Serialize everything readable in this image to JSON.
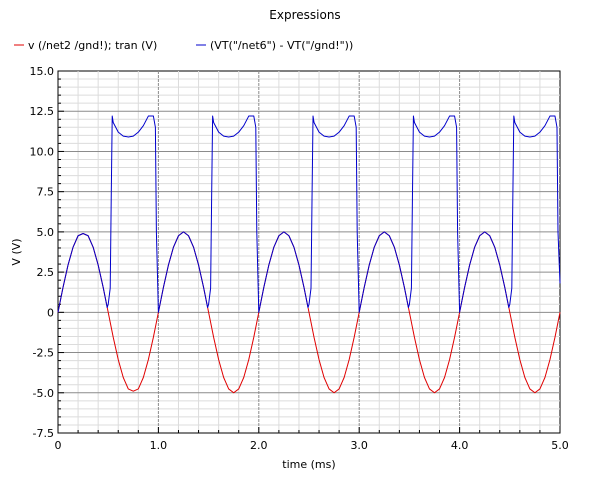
{
  "chart_data": {
    "type": "line",
    "title": "Expressions",
    "xlabel": "time (ms)",
    "ylabel": "V (V)",
    "xlim": [
      0,
      5.0
    ],
    "ylim": [
      -7.5,
      15.0
    ],
    "xticks": [
      0,
      1.0,
      2.0,
      3.0,
      4.0,
      5.0
    ],
    "xtick_labels": [
      "0",
      "1.0",
      "2.0",
      "3.0",
      "4.0",
      "5.0"
    ],
    "yticks": [
      -7.5,
      -5.0,
      -2.5,
      0,
      2.5,
      5.0,
      7.5,
      10.0,
      12.5,
      15.0
    ],
    "ytick_labels": [
      "-7.5",
      "-5.0",
      "-2.5",
      "0",
      "2.5",
      "5.0",
      "7.5",
      "10.0",
      "12.5",
      "15.0"
    ],
    "grid": true,
    "legend_position": "top-left",
    "series": [
      {
        "name": "v (/net2 /gnd!); tran (V)",
        "color": "#e00000",
        "x": [
          0,
          0.05,
          0.1,
          0.15,
          0.2,
          0.25,
          0.3,
          0.35,
          0.4,
          0.45,
          0.5,
          0.55,
          0.6,
          0.65,
          0.7,
          0.75,
          0.8,
          0.85,
          0.9,
          0.95,
          1.0,
          1.05,
          1.1,
          1.15,
          1.2,
          1.25,
          1.3,
          1.35,
          1.4,
          1.45,
          1.5,
          1.55,
          1.6,
          1.65,
          1.7,
          1.75,
          1.8,
          1.85,
          1.9,
          1.95,
          2.0,
          2.05,
          2.1,
          2.15,
          2.2,
          2.25,
          2.3,
          2.35,
          2.4,
          2.45,
          2.5,
          2.55,
          2.6,
          2.65,
          2.7,
          2.75,
          2.8,
          2.85,
          2.9,
          2.95,
          3.0,
          3.05,
          3.1,
          3.15,
          3.2,
          3.25,
          3.3,
          3.35,
          3.4,
          3.45,
          3.5,
          3.55,
          3.6,
          3.65,
          3.7,
          3.75,
          3.8,
          3.85,
          3.9,
          3.95,
          4.0,
          4.05,
          4.1,
          4.15,
          4.2,
          4.25,
          4.3,
          4.35,
          4.4,
          4.45,
          4.5,
          4.55,
          4.6,
          4.65,
          4.7,
          4.75,
          4.8,
          4.85,
          4.9,
          4.95,
          5.0
        ],
        "y": [
          0,
          1.55,
          2.94,
          4.05,
          4.76,
          4.9,
          4.76,
          4.05,
          2.94,
          1.55,
          0,
          -1.55,
          -2.94,
          -4.05,
          -4.76,
          -4.9,
          -4.76,
          -4.05,
          -2.94,
          -1.55,
          0,
          1.55,
          2.94,
          4.05,
          4.76,
          5.0,
          4.76,
          4.05,
          2.94,
          1.55,
          0,
          -1.55,
          -2.94,
          -4.05,
          -4.76,
          -5.0,
          -4.76,
          -4.05,
          -2.94,
          -1.55,
          0,
          1.55,
          2.94,
          4.05,
          4.76,
          5.0,
          4.76,
          4.05,
          2.94,
          1.55,
          0,
          -1.55,
          -2.94,
          -4.05,
          -4.76,
          -5.0,
          -4.76,
          -4.05,
          -2.94,
          -1.55,
          0,
          1.55,
          2.94,
          4.05,
          4.76,
          5.0,
          4.76,
          4.05,
          2.94,
          1.55,
          0,
          -1.55,
          -2.94,
          -4.05,
          -4.76,
          -5.0,
          -4.76,
          -4.05,
          -2.94,
          -1.55,
          0,
          1.55,
          2.94,
          4.05,
          4.76,
          5.0,
          4.76,
          4.05,
          2.94,
          1.55,
          0,
          -1.55,
          -2.94,
          -4.05,
          -4.76,
          -5.0,
          -4.76,
          -4.05,
          -2.94,
          -1.55,
          0
        ]
      },
      {
        "name": "(VT(\"/net6\") - VT(\"/gnd!\"))",
        "color": "#0000cc",
        "x": [
          0,
          0.05,
          0.1,
          0.15,
          0.2,
          0.25,
          0.3,
          0.35,
          0.4,
          0.45,
          0.49,
          0.5,
          0.52,
          0.53,
          0.54,
          0.55,
          0.6,
          0.65,
          0.7,
          0.75,
          0.8,
          0.85,
          0.9,
          0.95,
          0.97,
          0.98,
          1.0,
          1.05,
          1.1,
          1.15,
          1.2,
          1.25,
          1.3,
          1.35,
          1.4,
          1.45,
          1.49,
          1.5,
          1.52,
          1.53,
          1.54,
          1.55,
          1.6,
          1.65,
          1.7,
          1.75,
          1.8,
          1.85,
          1.9,
          1.95,
          1.97,
          1.98,
          2.0,
          2.05,
          2.1,
          2.15,
          2.2,
          2.25,
          2.3,
          2.35,
          2.4,
          2.45,
          2.49,
          2.5,
          2.52,
          2.53,
          2.54,
          2.55,
          2.6,
          2.65,
          2.7,
          2.75,
          2.8,
          2.85,
          2.9,
          2.95,
          2.97,
          2.98,
          3.0,
          3.05,
          3.1,
          3.15,
          3.2,
          3.25,
          3.3,
          3.35,
          3.4,
          3.45,
          3.49,
          3.5,
          3.52,
          3.53,
          3.54,
          3.55,
          3.6,
          3.65,
          3.7,
          3.75,
          3.8,
          3.85,
          3.9,
          3.95,
          3.97,
          3.98,
          4.0,
          4.05,
          4.1,
          4.15,
          4.2,
          4.25,
          4.3,
          4.35,
          4.4,
          4.45,
          4.49,
          4.5,
          4.52,
          4.53,
          4.54,
          4.55,
          4.6,
          4.65,
          4.7,
          4.75,
          4.8,
          4.85,
          4.9,
          4.95,
          4.97,
          4.98,
          5.0
        ],
        "y": [
          0,
          1.55,
          2.94,
          4.05,
          4.76,
          4.9,
          4.76,
          4.05,
          2.94,
          1.55,
          0.3,
          0.5,
          1.5,
          7.0,
          12.2,
          11.8,
          11.2,
          10.95,
          10.9,
          10.95,
          11.2,
          11.6,
          12.2,
          12.2,
          11.5,
          5.0,
          0,
          1.55,
          2.94,
          4.05,
          4.76,
          5.0,
          4.76,
          4.05,
          2.94,
          1.55,
          0.3,
          0.5,
          1.5,
          7.0,
          12.2,
          11.8,
          11.2,
          10.95,
          10.9,
          10.95,
          11.2,
          11.6,
          12.2,
          12.2,
          11.5,
          5.0,
          0,
          1.55,
          2.94,
          4.05,
          4.76,
          5.0,
          4.76,
          4.05,
          2.94,
          1.55,
          0.3,
          0.5,
          1.5,
          7.0,
          12.2,
          11.8,
          11.2,
          10.95,
          10.9,
          10.95,
          11.2,
          11.6,
          12.2,
          12.2,
          11.5,
          5.0,
          0,
          1.55,
          2.94,
          4.05,
          4.76,
          5.0,
          4.76,
          4.05,
          2.94,
          1.55,
          0.3,
          0.5,
          1.5,
          7.0,
          12.2,
          11.8,
          11.2,
          10.95,
          10.9,
          10.95,
          11.2,
          11.6,
          12.2,
          12.2,
          11.5,
          5.0,
          0,
          1.55,
          2.94,
          4.05,
          4.76,
          5.0,
          4.76,
          4.05,
          2.94,
          1.55,
          0.3,
          0.5,
          1.5,
          7.0,
          12.2,
          11.8,
          11.2,
          10.95,
          10.9,
          10.95,
          11.2,
          11.6,
          12.2,
          12.2,
          11.5,
          5.0,
          1.8
        ]
      }
    ]
  }
}
